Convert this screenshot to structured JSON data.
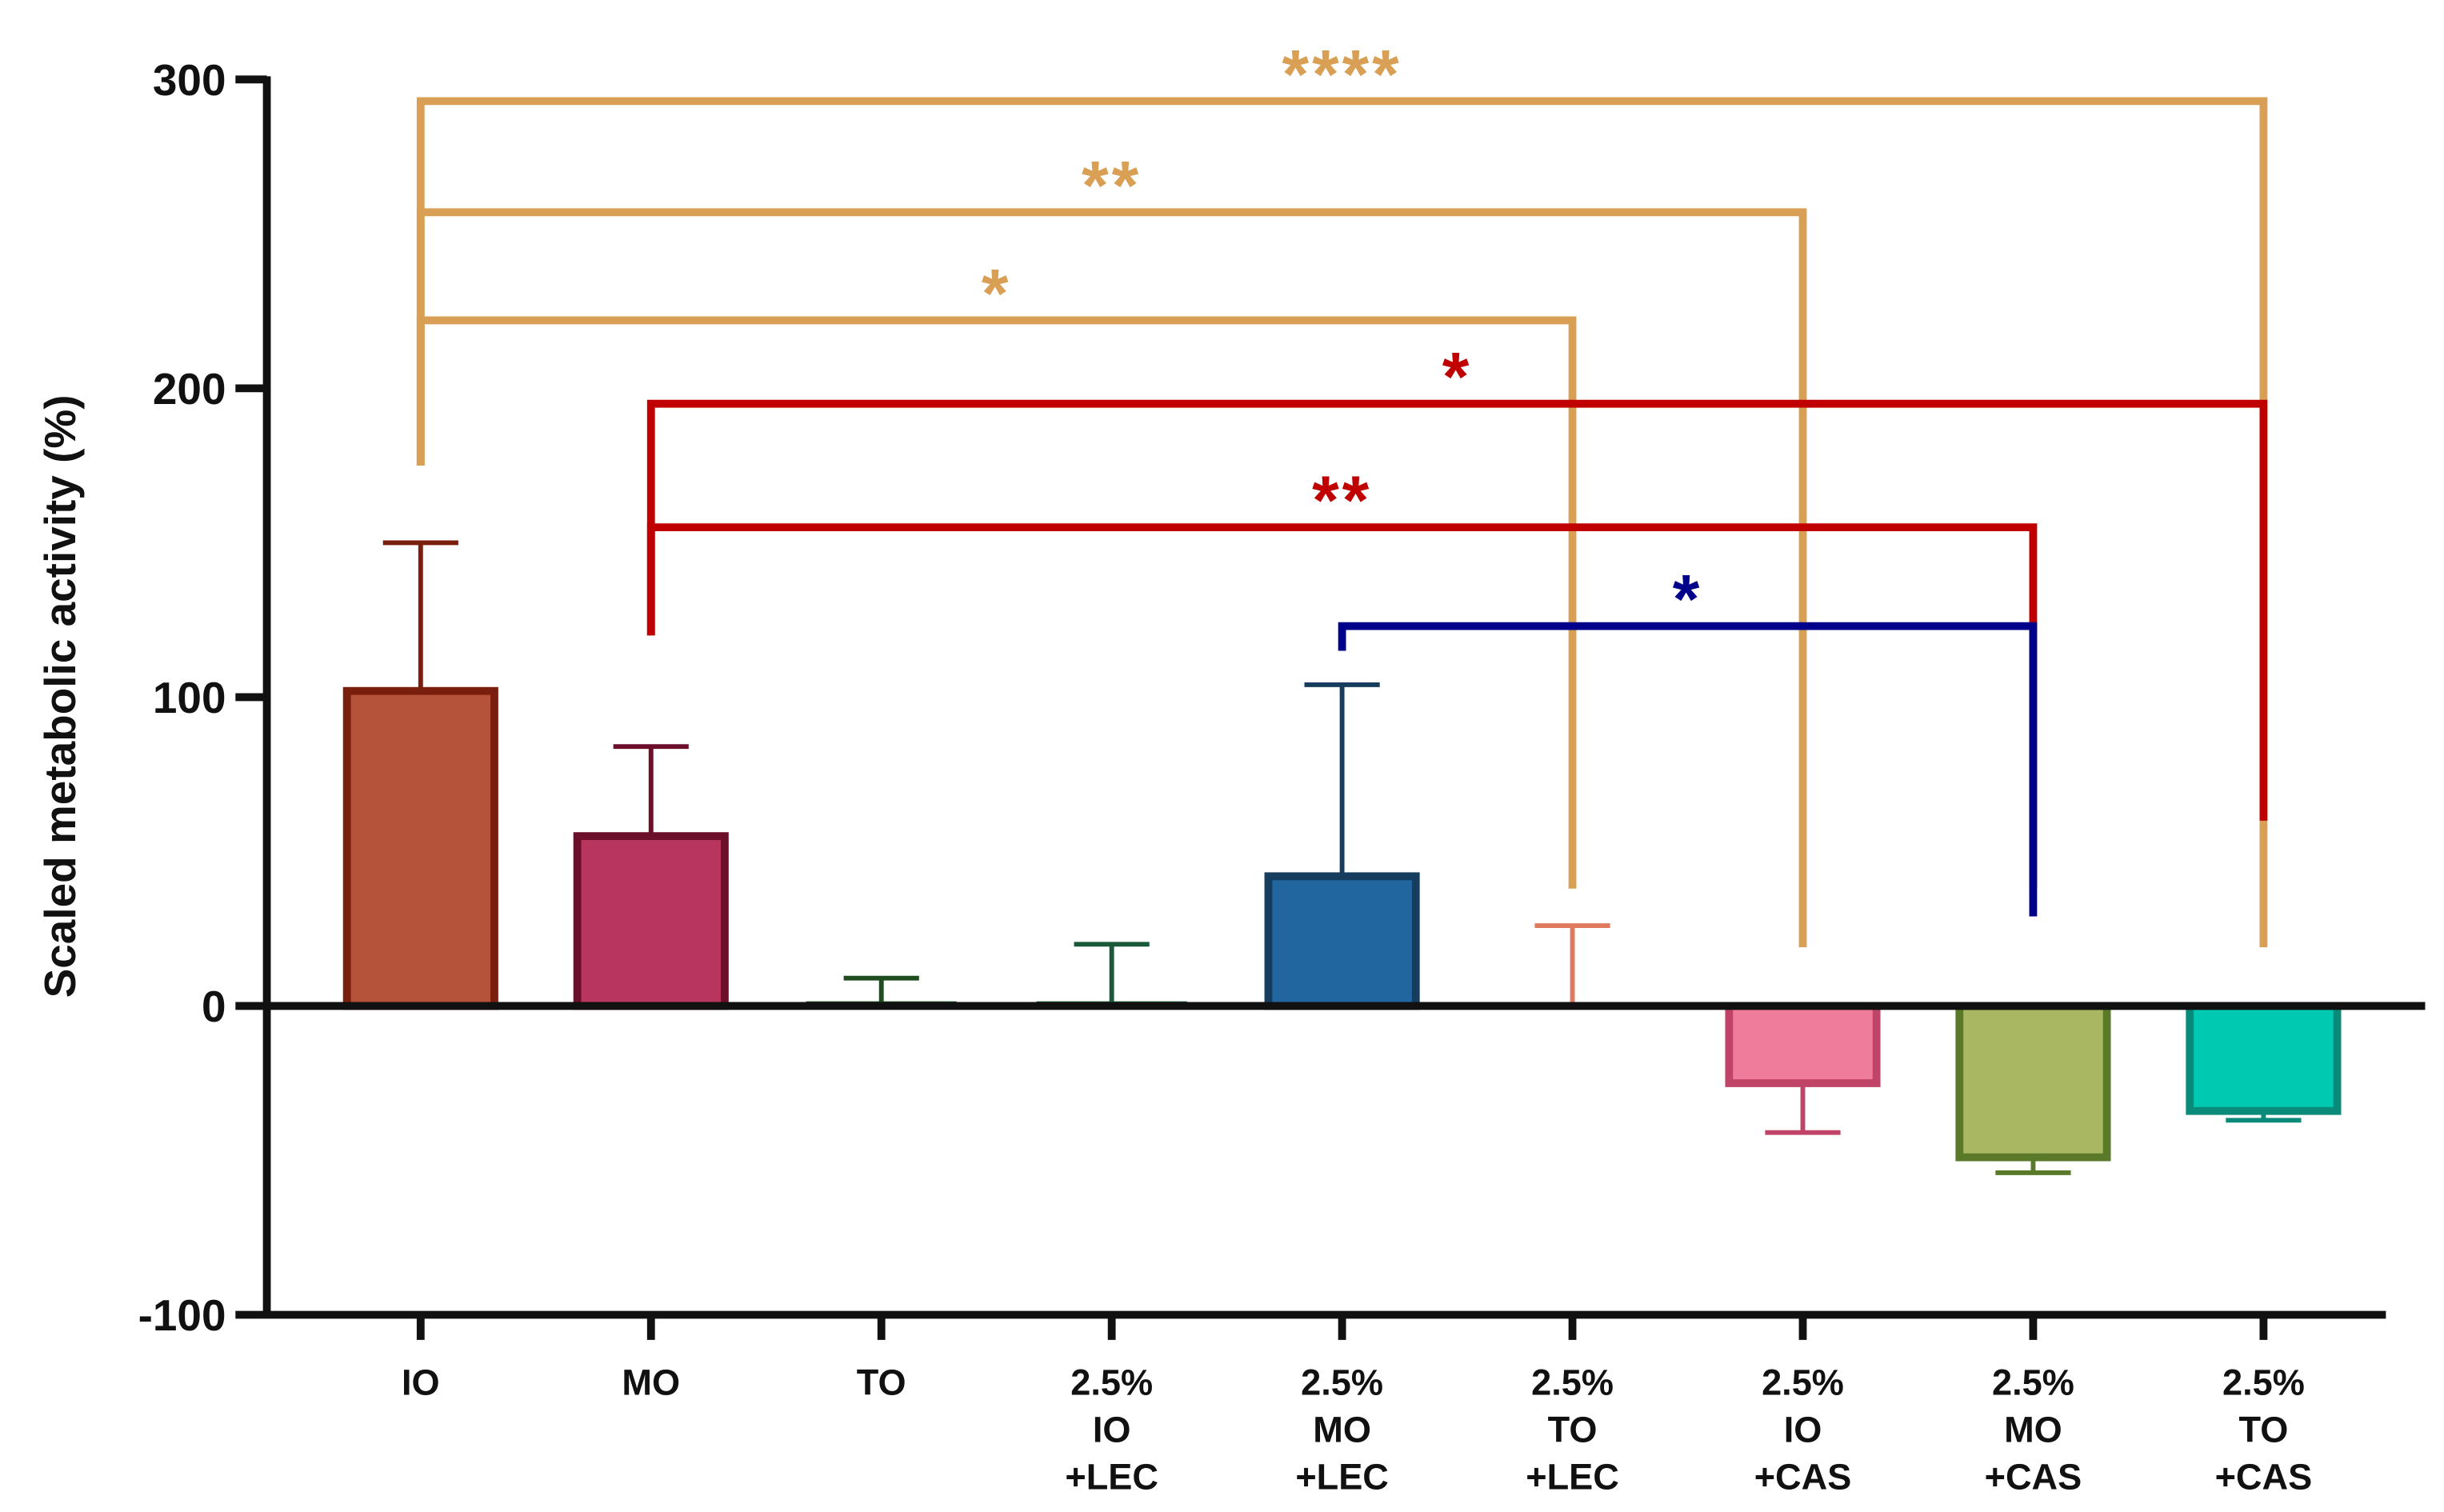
{
  "chart_data": {
    "type": "bar",
    "y_label": "Scaled metabolic activity (%)",
    "categories": [
      "IO",
      "MO",
      "TO",
      "2.5% IO +LEC",
      "2.5% MO +LEC",
      "2.5% TO +LEC",
      "2.5% IO +CAS",
      "2.5% MO +CAS",
      "2.5% TO +CAS"
    ],
    "values": [
      102,
      55,
      1,
      1,
      42,
      0.5,
      -25,
      -49,
      -34
    ],
    "errors": [
      48,
      29,
      8,
      19,
      62,
      25.5,
      16,
      5,
      3
    ],
    "colors": [
      "#b5533a",
      "#b83560",
      "#1f4d1f",
      "#1a5a3a",
      "#2266a0",
      "#e07a5f",
      "#f07c9c",
      "#a9b762",
      "#00c9b1"
    ],
    "edge_colors": [
      "#7a1e0e",
      "#6b0f2a",
      "#1f4d1f",
      "#1a5a3a",
      "#163c5e",
      "#e07a5f",
      "#c04468",
      "#5a7a2a",
      "#0a8a78"
    ],
    "ylim": [
      -100,
      300
    ],
    "yticks": [
      -100,
      0,
      100,
      200,
      300
    ],
    "annotations": [
      {
        "label": "****",
        "from": 0,
        "to": 8,
        "y": 293,
        "left_end": 175,
        "right_end": 19,
        "color": "#d9a055"
      },
      {
        "label": "**",
        "from": 0,
        "to": 6,
        "y": 257,
        "left_end": 175,
        "right_end": 19,
        "color": "#d9a055"
      },
      {
        "label": "*",
        "from": 0,
        "to": 5,
        "y": 222,
        "left_end": 175,
        "right_end": 38,
        "color": "#d9a055"
      },
      {
        "label": "*",
        "from": 1,
        "to": 8,
        "y": 195,
        "left_end": 120,
        "right_end": 60,
        "color": "#c00000"
      },
      {
        "label": "**",
        "from": 1,
        "to": 7,
        "y": 155,
        "left_end": 120,
        "right_end": 38,
        "color": "#c00000"
      },
      {
        "label": "*",
        "from": 4,
        "to": 7,
        "y": 123,
        "left_end": 115,
        "right_end": 29,
        "color": "#00008b"
      }
    ]
  }
}
